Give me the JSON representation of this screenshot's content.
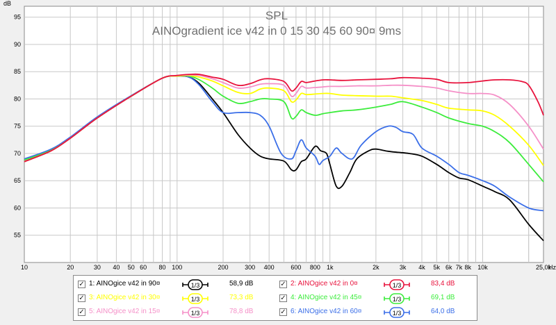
{
  "chart_data": {
    "type": "line",
    "title": "SPL",
    "subtitle": "AINOgradient ice v42 in 0 15 30 45 60 90¤ 9ms",
    "ylabel": "dB",
    "xunit": "Hz",
    "x_scale": "log",
    "xlim": [
      10,
      25000
    ],
    "ylim": [
      50,
      97
    ],
    "grid": true,
    "y_ticks": [
      55,
      60,
      65,
      70,
      75,
      80,
      85,
      90,
      95
    ],
    "x_ticks": [
      {
        "v": 10,
        "label": "10"
      },
      {
        "v": 20,
        "label": "20"
      },
      {
        "v": 30,
        "label": "30"
      },
      {
        "v": 40,
        "label": "40"
      },
      {
        "v": 50,
        "label": "50"
      },
      {
        "v": 60,
        "label": "60"
      },
      {
        "v": 80,
        "label": "80"
      },
      {
        "v": 100,
        "label": "100"
      },
      {
        "v": 200,
        "label": "200"
      },
      {
        "v": 300,
        "label": "300"
      },
      {
        "v": 400,
        "label": "400"
      },
      {
        "v": 600,
        "label": "600"
      },
      {
        "v": 800,
        "label": "800"
      },
      {
        "v": 1000,
        "label": "1k"
      },
      {
        "v": 2000,
        "label": "2k"
      },
      {
        "v": 3000,
        "label": "3k"
      },
      {
        "v": 4000,
        "label": "4k"
      },
      {
        "v": 5000,
        "label": "5k"
      },
      {
        "v": 6000,
        "label": "6k"
      },
      {
        "v": 7000,
        "label": "7k"
      },
      {
        "v": 8000,
        "label": "8k"
      },
      {
        "v": 10000,
        "label": "10k"
      },
      {
        "v": 25000,
        "label": "25,0k"
      }
    ],
    "series": [
      {
        "name": "1: AINOgice v42 in 90¤",
        "color": "#000000",
        "value_label": "58,9 dB",
        "x": [
          10,
          15,
          20,
          30,
          50,
          80,
          100,
          120,
          140,
          170,
          200,
          250,
          300,
          350,
          400,
          500,
          560,
          600,
          650,
          700,
          800,
          870,
          950,
          1000,
          1100,
          1200,
          1350,
          1500,
          1800,
          2000,
          2400,
          2800,
          3300,
          4000,
          5000,
          6000,
          7000,
          8000,
          10000,
          12000,
          15000,
          20000,
          25000
        ],
        "y": [
          68.5,
          70.5,
          72.8,
          76.5,
          80.5,
          83.8,
          84.2,
          84.0,
          82.8,
          80.0,
          77.5,
          73.5,
          71.0,
          69.5,
          69.0,
          68.6,
          67.0,
          67.0,
          68.5,
          69.0,
          71.3,
          70.5,
          70.0,
          68.0,
          64.0,
          64.0,
          66.5,
          69.0,
          70.5,
          70.8,
          70.4,
          70.2,
          70.0,
          69.5,
          68.0,
          66.5,
          65.5,
          65.2,
          64.0,
          63.0,
          61.5,
          57.0,
          54.0
        ]
      },
      {
        "name": "2: AINOgice v42 in 0¤",
        "color": "#e8123c",
        "value_label": "83,4 dB",
        "x": [
          10,
          15,
          20,
          30,
          50,
          80,
          100,
          120,
          140,
          170,
          200,
          250,
          300,
          350,
          400,
          500,
          560,
          600,
          650,
          700,
          800,
          900,
          1000,
          1200,
          1500,
          2000,
          2500,
          3000,
          4000,
          5000,
          6000,
          8000,
          10000,
          12000,
          15000,
          18000,
          20000,
          23000,
          25000
        ],
        "y": [
          68.5,
          70.5,
          72.8,
          76.5,
          80.5,
          83.8,
          84.3,
          84.5,
          84.5,
          84.0,
          83.6,
          82.5,
          82.8,
          83.5,
          83.7,
          83.2,
          81.5,
          82.0,
          83.2,
          83.0,
          83.3,
          83.5,
          83.5,
          83.4,
          83.5,
          83.6,
          83.7,
          83.9,
          83.8,
          83.6,
          83.0,
          83.0,
          83.3,
          83.5,
          83.5,
          83.2,
          82.5,
          79.5,
          77.0
        ]
      },
      {
        "name": "3: AINOgice v42 in 30¤",
        "color": "#ffff00",
        "value_label": "73,3 dB",
        "x": [
          10,
          15,
          20,
          30,
          50,
          80,
          100,
          120,
          140,
          170,
          200,
          250,
          300,
          350,
          400,
          500,
          560,
          600,
          650,
          700,
          800,
          900,
          1000,
          1200,
          1500,
          2000,
          2500,
          3000,
          4000,
          5000,
          6000,
          8000,
          10000,
          12000,
          15000,
          20000,
          25000
        ],
        "y": [
          68.5,
          70.5,
          72.8,
          76.5,
          80.5,
          83.8,
          84.2,
          84.3,
          84.0,
          83.3,
          82.4,
          81.2,
          81.0,
          81.8,
          82.0,
          81.5,
          79.5,
          79.8,
          81.0,
          80.8,
          80.9,
          81.0,
          81.0,
          80.7,
          80.6,
          80.5,
          80.5,
          80.2,
          79.7,
          79.0,
          78.3,
          78.0,
          77.8,
          77.0,
          75.0,
          71.5,
          67.8
        ]
      },
      {
        "name": "4: AINOgice v42 in 45¤",
        "color": "#3cec3c",
        "value_label": "69,1 dB",
        "x": [
          10,
          15,
          20,
          30,
          50,
          80,
          100,
          120,
          140,
          170,
          200,
          250,
          300,
          350,
          400,
          500,
          560,
          600,
          650,
          700,
          800,
          900,
          1000,
          1200,
          1500,
          2000,
          2500,
          3000,
          4000,
          5000,
          6000,
          8000,
          10000,
          12000,
          15000,
          20000,
          25000
        ],
        "y": [
          68.8,
          70.6,
          72.8,
          76.5,
          80.5,
          83.8,
          84.2,
          84.2,
          83.5,
          82.0,
          80.5,
          79.2,
          79.5,
          80.0,
          80.0,
          79.5,
          76.5,
          76.8,
          78.0,
          77.5,
          77.0,
          77.3,
          77.5,
          77.8,
          78.0,
          78.5,
          79.0,
          79.5,
          78.5,
          77.5,
          76.5,
          75.5,
          75.0,
          74.0,
          72.0,
          68.0,
          64.8
        ]
      },
      {
        "name": "5: AINOgice v42 in 15¤",
        "color": "#f590c8",
        "value_label": "78,8 dB",
        "x": [
          10,
          15,
          20,
          30,
          50,
          80,
          100,
          120,
          140,
          170,
          200,
          250,
          300,
          350,
          400,
          500,
          560,
          600,
          650,
          700,
          800,
          900,
          1000,
          1200,
          1500,
          2000,
          2500,
          3000,
          4000,
          5000,
          6000,
          8000,
          10000,
          12000,
          15000,
          20000,
          25000
        ],
        "y": [
          68.5,
          70.5,
          72.8,
          76.5,
          80.5,
          83.8,
          84.3,
          84.4,
          84.3,
          83.7,
          83.0,
          82.0,
          82.2,
          82.7,
          82.8,
          82.5,
          80.5,
          81.0,
          82.3,
          82.0,
          82.1,
          82.2,
          82.3,
          82.3,
          82.4,
          82.4,
          82.5,
          82.5,
          82.3,
          82.0,
          81.5,
          81.0,
          81.0,
          80.7,
          79.0,
          75.0,
          70.8
        ]
      },
      {
        "name": "6: AINOgice v42 in 60¤",
        "color": "#3a6ee8",
        "value_label": "64,0 dB",
        "x": [
          10,
          15,
          20,
          30,
          50,
          80,
          100,
          120,
          140,
          170,
          200,
          250,
          300,
          350,
          400,
          480,
          560,
          600,
          650,
          700,
          800,
          850,
          900,
          1000,
          1100,
          1200,
          1400,
          1600,
          2000,
          2400,
          2700,
          3000,
          3500,
          4000,
          5000,
          6000,
          7000,
          8000,
          10000,
          12000,
          15000,
          20000,
          25000
        ],
        "y": [
          69.0,
          70.8,
          73.0,
          76.7,
          80.6,
          83.8,
          84.2,
          84.0,
          82.5,
          79.5,
          77.5,
          77.5,
          77.5,
          77.0,
          75.0,
          70.0,
          69.0,
          70.5,
          72.5,
          71.0,
          69.5,
          68.0,
          68.7,
          69.5,
          71.0,
          70.0,
          69.0,
          71.5,
          74.0,
          75.0,
          74.8,
          74.0,
          73.5,
          71.0,
          69.5,
          68.0,
          66.5,
          66.0,
          65.0,
          64.0,
          62.0,
          60.0,
          59.5
        ]
      }
    ]
  },
  "legend_rows": [
    [
      "1",
      "2"
    ],
    [
      "3",
      "4"
    ],
    [
      "5",
      "6"
    ]
  ],
  "legend": {
    "symbol_text": "1/3",
    "check_mark": "✓"
  }
}
